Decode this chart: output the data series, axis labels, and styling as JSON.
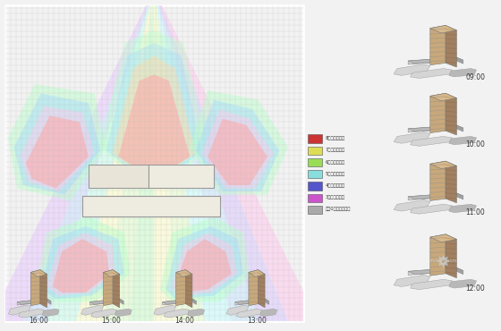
{
  "bg_color": "#f2f2f2",
  "main_panel_bg": "#cccccc",
  "legend_items": [
    {
      "color": "#cc3333",
      "label": "8小时照射范围"
    },
    {
      "color": "#dddd55",
      "label": "7小时照射范围"
    },
    {
      "color": "#99dd55",
      "label": "6小时照射范围"
    },
    {
      "color": "#88dddd",
      "label": "5小时照射范围"
    },
    {
      "color": "#5555cc",
      "label": "4小时照射范围"
    },
    {
      "color": "#cc55cc",
      "label": "3小时照射范围"
    },
    {
      "color": "#aaaaaa",
      "label": "不足0小时照射范围"
    }
  ],
  "time_labels_right": [
    "09:00",
    "10:00",
    "11:00",
    "12:00"
  ],
  "time_labels_bottom": [
    "16:00",
    "15:00",
    "14:00",
    "13:00"
  ],
  "building_color": "#e8e5d8",
  "building_border": "#999999",
  "tan_face": "#c8a87a",
  "tan_dark": "#a08060",
  "tan_light": "#d8b88a",
  "gray_light": "#d5d5d5",
  "gray_mid": "#b8b8b8",
  "gray_dark": "#a0a0a0",
  "wall_stripe": "#909090"
}
